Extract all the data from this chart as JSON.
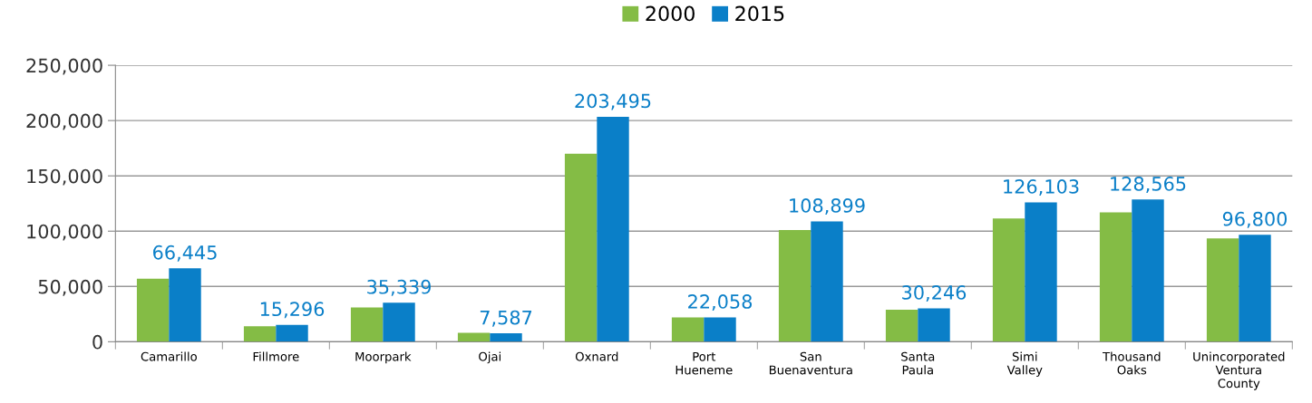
{
  "chart_data": {
    "type": "bar",
    "categories": [
      "Camarillo",
      "Fillmore",
      "Moorpark",
      "Ojai",
      "Oxnard",
      "Port\nHueneme",
      "San\nBuenaventura",
      "Santa\nPaula",
      "Simi\nValley",
      "Thousand\nOaks",
      "Unincorporated\nVentura\nCounty"
    ],
    "series": [
      {
        "name": "2000",
        "color": "#84bc45",
        "values": [
          57000,
          14000,
          31000,
          8000,
          170000,
          22000,
          101000,
          29000,
          111500,
          117000,
          93400
        ]
      },
      {
        "name": "2015",
        "color": "#0a7fc8",
        "values": [
          66445,
          15296,
          35339,
          7587,
          203495,
          22058,
          108899,
          30246,
          126103,
          128565,
          96800
        ],
        "value_labels": [
          "66,445",
          "15,296",
          "35,339",
          "7,587",
          "203,495",
          "22,058",
          "108,899",
          "30,246",
          "126,103",
          "128,565",
          "96,800"
        ]
      }
    ],
    "ylim": [
      0,
      250000
    ],
    "yticks": [
      {
        "value": 0,
        "label": "0"
      },
      {
        "value": 50000,
        "label": "50,000"
      },
      {
        "value": 100000,
        "label": "100,000"
      },
      {
        "value": 150000,
        "label": "150,000"
      },
      {
        "value": 200000,
        "label": "200,000"
      },
      {
        "value": 250000,
        "label": "250,000"
      }
    ],
    "grid": "y",
    "legend": "top"
  }
}
